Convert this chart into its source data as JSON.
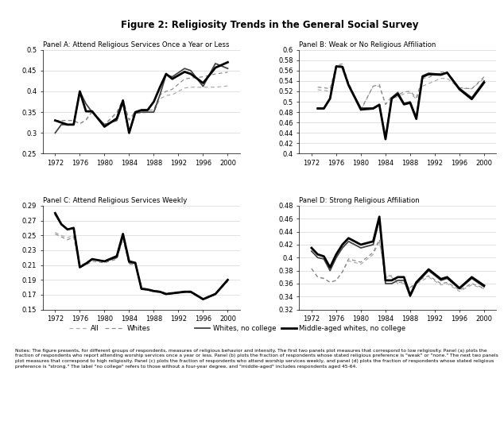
{
  "title": "Figure 2: Religiosity Trends in the General Social Survey",
  "panel_a_title": "Panel A: Attend Religious Services Once a Year or Less",
  "panel_b_title": "Panel B: Weak or No Religious Affiliation",
  "panel_c_title": "Panel C: Attend Religious Services Weekly",
  "panel_d_title": "Panel D: Strong Religious Affiliation",
  "years_a": [
    1972,
    1973,
    1974,
    1975,
    1976,
    1977,
    1978,
    1980,
    1982,
    1983,
    1984,
    1985,
    1986,
    1987,
    1988,
    1989,
    1990,
    1991,
    1993,
    1994,
    1996,
    1998,
    2000
  ],
  "years_b": [
    1973,
    1974,
    1975,
    1976,
    1977,
    1978,
    1980,
    1982,
    1983,
    1984,
    1985,
    1986,
    1987,
    1988,
    1989,
    1990,
    1991,
    1993,
    1994,
    1996,
    1998,
    2000
  ],
  "years_c": [
    1972,
    1973,
    1974,
    1975,
    1976,
    1977,
    1978,
    1980,
    1982,
    1983,
    1984,
    1985,
    1986,
    1987,
    1988,
    1989,
    1990,
    1991,
    1993,
    1994,
    1996,
    1998,
    2000
  ],
  "years_d": [
    1972,
    1973,
    1974,
    1975,
    1976,
    1977,
    1978,
    1980,
    1982,
    1983,
    1984,
    1985,
    1986,
    1987,
    1988,
    1989,
    1990,
    1991,
    1993,
    1994,
    1996,
    1998,
    2000
  ],
  "panel_a": {
    "all": [
      0.33,
      0.33,
      0.33,
      0.33,
      0.322,
      0.33,
      0.35,
      0.318,
      0.348,
      0.37,
      0.33,
      0.348,
      0.348,
      0.35,
      0.35,
      0.382,
      0.39,
      0.392,
      0.408,
      0.41,
      0.41,
      0.41,
      0.413
    ],
    "whites": [
      0.33,
      0.33,
      0.33,
      0.33,
      0.322,
      0.332,
      0.352,
      0.32,
      0.35,
      0.38,
      0.332,
      0.352,
      0.352,
      0.355,
      0.355,
      0.392,
      0.4,
      0.405,
      0.43,
      0.432,
      0.435,
      0.442,
      0.446
    ],
    "wnc": [
      0.3,
      0.32,
      0.32,
      0.32,
      0.4,
      0.37,
      0.35,
      0.32,
      0.33,
      0.372,
      0.3,
      0.348,
      0.35,
      0.35,
      0.35,
      0.392,
      0.44,
      0.435,
      0.455,
      0.45,
      0.412,
      0.467,
      0.455
    ],
    "mwnc": [
      0.33,
      0.325,
      0.32,
      0.32,
      0.4,
      0.352,
      0.352,
      0.315,
      0.335,
      0.378,
      0.3,
      0.35,
      0.355,
      0.355,
      0.375,
      0.41,
      0.442,
      0.43,
      0.447,
      0.442,
      0.42,
      0.457,
      0.47
    ]
  },
  "panel_b": {
    "all": [
      0.523,
      0.522,
      0.52,
      0.568,
      0.57,
      0.535,
      0.483,
      0.53,
      0.53,
      0.495,
      0.505,
      0.51,
      0.515,
      0.517,
      0.505,
      0.53,
      0.535,
      0.545,
      0.545,
      0.526,
      0.525,
      0.545
    ],
    "whites": [
      0.528,
      0.527,
      0.525,
      0.57,
      0.573,
      0.537,
      0.485,
      0.53,
      0.533,
      0.495,
      0.51,
      0.513,
      0.519,
      0.52,
      0.508,
      0.545,
      0.547,
      0.557,
      0.557,
      0.527,
      0.525,
      0.548
    ],
    "wnc": [
      0.488,
      0.488,
      0.507,
      0.568,
      0.568,
      0.533,
      0.488,
      0.488,
      0.495,
      0.43,
      0.508,
      0.518,
      0.497,
      0.5,
      0.47,
      0.55,
      0.555,
      0.553,
      0.556,
      0.526,
      0.508,
      0.54
    ],
    "mwnc": [
      0.487,
      0.487,
      0.506,
      0.568,
      0.567,
      0.532,
      0.485,
      0.487,
      0.494,
      0.428,
      0.506,
      0.515,
      0.495,
      0.498,
      0.467,
      0.548,
      0.553,
      0.552,
      0.556,
      0.524,
      0.505,
      0.537
    ]
  },
  "panel_c": {
    "all": [
      0.254,
      0.25,
      0.247,
      0.25,
      0.21,
      0.213,
      0.218,
      0.215,
      0.22,
      0.248,
      0.213,
      0.213,
      0.18,
      0.178,
      0.176,
      0.175,
      0.172,
      0.173,
      0.175,
      0.175,
      0.165,
      0.172,
      0.19
    ],
    "whites": [
      0.252,
      0.248,
      0.244,
      0.248,
      0.207,
      0.21,
      0.215,
      0.213,
      0.218,
      0.245,
      0.211,
      0.211,
      0.178,
      0.176,
      0.174,
      0.173,
      0.17,
      0.171,
      0.173,
      0.173,
      0.163,
      0.17,
      0.188
    ],
    "wnc": [
      0.278,
      0.265,
      0.258,
      0.26,
      0.207,
      0.212,
      0.218,
      0.215,
      0.22,
      0.25,
      0.213,
      0.213,
      0.178,
      0.177,
      0.175,
      0.174,
      0.171,
      0.172,
      0.174,
      0.174,
      0.164,
      0.171,
      0.19
    ],
    "mwnc": [
      0.28,
      0.265,
      0.258,
      0.26,
      0.207,
      0.212,
      0.218,
      0.215,
      0.222,
      0.252,
      0.215,
      0.213,
      0.178,
      0.177,
      0.175,
      0.174,
      0.171,
      0.172,
      0.174,
      0.174,
      0.164,
      0.171,
      0.19
    ]
  },
  "panel_d": {
    "all": [
      0.383,
      0.37,
      0.368,
      0.362,
      0.365,
      0.378,
      0.395,
      0.39,
      0.405,
      0.425,
      0.37,
      0.37,
      0.36,
      0.36,
      0.352,
      0.36,
      0.365,
      0.37,
      0.358,
      0.36,
      0.348,
      0.358,
      0.352
    ],
    "whites": [
      0.383,
      0.37,
      0.368,
      0.362,
      0.365,
      0.378,
      0.398,
      0.393,
      0.408,
      0.428,
      0.372,
      0.372,
      0.362,
      0.362,
      0.354,
      0.362,
      0.368,
      0.372,
      0.36,
      0.362,
      0.35,
      0.36,
      0.353
    ],
    "wnc": [
      0.41,
      0.4,
      0.398,
      0.38,
      0.4,
      0.415,
      0.425,
      0.415,
      0.42,
      0.458,
      0.36,
      0.36,
      0.365,
      0.365,
      0.34,
      0.36,
      0.37,
      0.38,
      0.365,
      0.368,
      0.352,
      0.368,
      0.355
    ],
    "mwnc": [
      0.415,
      0.405,
      0.402,
      0.385,
      0.405,
      0.42,
      0.43,
      0.42,
      0.425,
      0.463,
      0.365,
      0.365,
      0.37,
      0.37,
      0.342,
      0.362,
      0.372,
      0.382,
      0.367,
      0.37,
      0.353,
      0.37,
      0.357
    ]
  },
  "ylim_a": [
    0.25,
    0.5
  ],
  "ylim_b": [
    0.4,
    0.6
  ],
  "ylim_c": [
    0.15,
    0.29
  ],
  "ylim_d": [
    0.32,
    0.48
  ],
  "yticks_a": [
    0.25,
    0.3,
    0.35,
    0.4,
    0.45,
    0.5
  ],
  "yticks_b": [
    0.4,
    0.42,
    0.44,
    0.46,
    0.48,
    0.5,
    0.52,
    0.54,
    0.56,
    0.58,
    0.6
  ],
  "yticks_c": [
    0.15,
    0.17,
    0.19,
    0.21,
    0.23,
    0.25,
    0.27,
    0.29
  ],
  "yticks_d": [
    0.32,
    0.34,
    0.36,
    0.38,
    0.4,
    0.42,
    0.44,
    0.46,
    0.48
  ],
  "xticks": [
    1972,
    1976,
    1980,
    1984,
    1988,
    1992,
    1996,
    2000
  ],
  "xlim": [
    1970,
    2002
  ],
  "notes_line1": "Notes: The figure presents, for different groups of respondents, measures of religious behavior and intensity. The first two panels plot measures that correspond to low religiosity. Panel (a) plots the",
  "notes_line2": "fraction of respondents who report attending worship services once a year or less. Panel (b) plots the fraction of respondents whose stated religious preference is \"weak\" or \"none.\" The next two panels",
  "notes_line3": "plot measures that correspond to high religiosity. Panel (c) plots the fraction of respondents who attend worship services weekly, and panel (d) plots the fraction of respondents whose stated religious",
  "notes_line4": "preference is \"strong.\" The label \"no college\" refers to those without a four-year degree, and \"middle-aged\" includes respondents aged 45-64."
}
